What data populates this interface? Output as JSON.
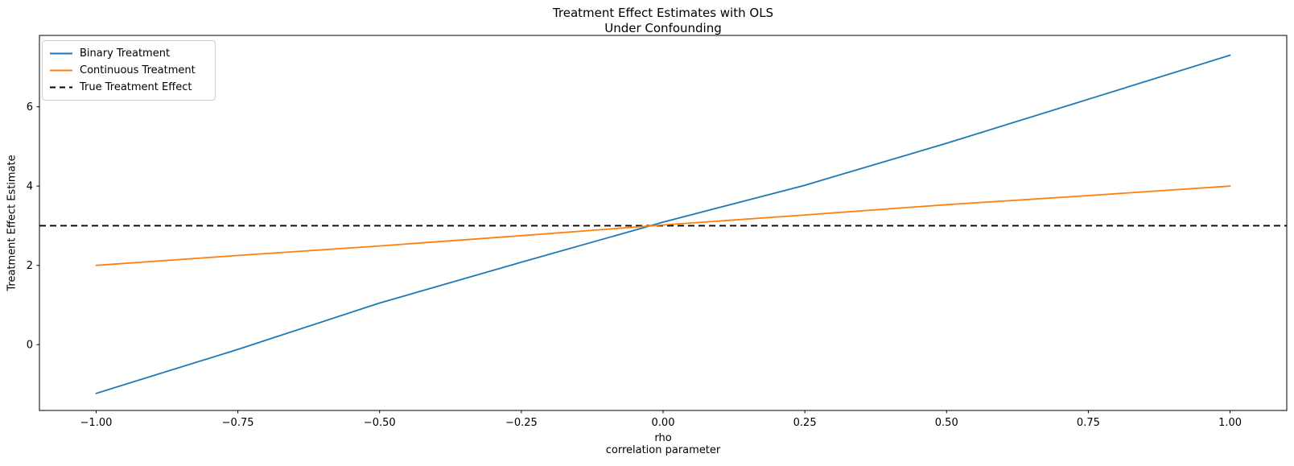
{
  "figure": {
    "title_line1": "Treatment Effect Estimates with OLS",
    "title_line2": "Under Confounding"
  },
  "axes": {
    "xlabel_line1": "rho",
    "xlabel_line2": "correlation parameter",
    "ylabel": "Treatment Effect Estimate"
  },
  "legend": {
    "items": [
      {
        "label": "Binary Treatment",
        "color": "#1f77b4",
        "dash": ""
      },
      {
        "label": "Continuous Treatment",
        "color": "#ff7f0e",
        "dash": ""
      },
      {
        "label": "True Treatment Effect",
        "color": "#000000",
        "dash": "7 5"
      }
    ]
  },
  "chart_data": {
    "type": "line",
    "title": "Treatment Effect Estimates with OLS\nUnder Confounding",
    "xlabel": "rho\ncorrelation parameter",
    "ylabel": "Treatment Effect Estimate",
    "x": [
      -1.0,
      -0.75,
      -0.5,
      -0.25,
      0.0,
      0.25,
      0.5,
      0.75,
      1.0
    ],
    "series": [
      {
        "name": "Binary Treatment",
        "color": "#1f77b4",
        "style": "solid",
        "values": [
          -1.23,
          -0.12,
          1.05,
          2.08,
          3.09,
          4.02,
          5.08,
          6.19,
          7.3
        ]
      },
      {
        "name": "Continuous Treatment",
        "color": "#ff7f0e",
        "style": "solid",
        "values": [
          2.0,
          2.25,
          2.49,
          2.75,
          3.02,
          3.27,
          3.53,
          3.76,
          4.0
        ]
      }
    ],
    "reference_line": {
      "name": "True Treatment Effect",
      "value": 3.0,
      "color": "#000000",
      "style": "dashed"
    },
    "xlim": [
      -1.1,
      1.1
    ],
    "ylim": [
      -1.66,
      7.8
    ],
    "xticks": [
      -1.0,
      -0.75,
      -0.5,
      -0.25,
      0.0,
      0.25,
      0.5,
      0.75,
      1.0
    ],
    "xtick_labels": [
      "−1.00",
      "−0.75",
      "−0.50",
      "−0.25",
      "0.00",
      "0.25",
      "0.50",
      "0.75",
      "1.00"
    ],
    "yticks": [
      0,
      2,
      4,
      6
    ],
    "ytick_labels": [
      "0",
      "2",
      "4",
      "6"
    ],
    "grid": false,
    "legend_position": "upper left"
  }
}
